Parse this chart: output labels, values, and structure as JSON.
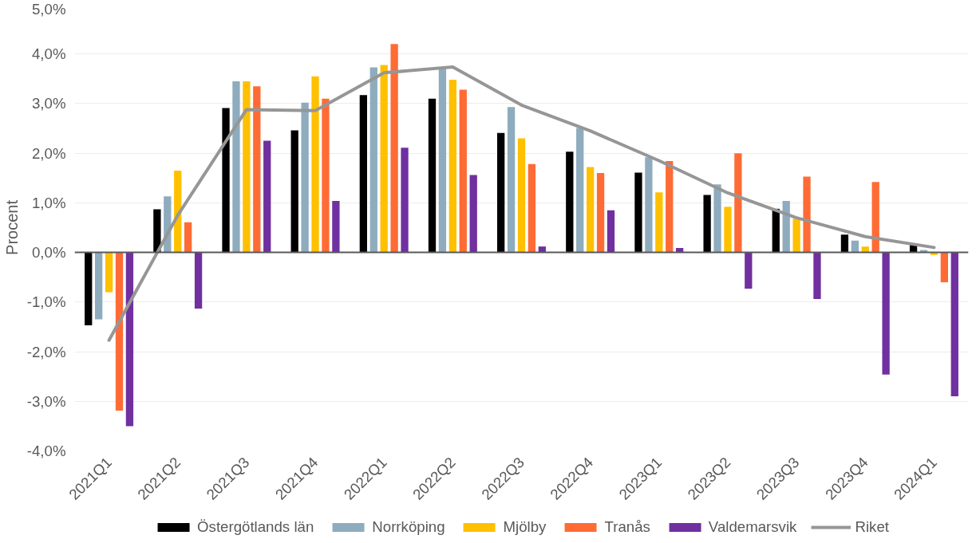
{
  "chart_data": {
    "type": "bar",
    "ylabel": "Procent",
    "categories": [
      "2021Q1",
      "2021Q2",
      "2021Q3",
      "2021Q4",
      "2022Q1",
      "2022Q2",
      "2022Q3",
      "2022Q4",
      "2023Q1",
      "2023Q2",
      "2023Q3",
      "2023Q4",
      "2024Q1"
    ],
    "series": [
      {
        "name": "Östergötlands län",
        "color": "#000000",
        "values": [
          -1.47,
          0.87,
          2.91,
          2.46,
          3.17,
          3.1,
          2.41,
          2.03,
          1.61,
          1.16,
          0.88,
          0.36,
          0.15
        ]
      },
      {
        "name": "Norrköping",
        "color": "#8eacbe",
        "values": [
          -1.35,
          1.13,
          3.45,
          3.02,
          3.73,
          3.73,
          2.93,
          2.51,
          1.92,
          1.37,
          1.04,
          0.24,
          0.05
        ]
      },
      {
        "name": "Mjölby",
        "color": "#ffc000",
        "values": [
          -0.8,
          1.65,
          3.45,
          3.55,
          3.78,
          3.48,
          2.3,
          1.72,
          1.21,
          0.92,
          0.68,
          0.12,
          -0.05
        ]
      },
      {
        "name": "Tranås",
        "color": "#ff6b35",
        "values": [
          -3.19,
          0.61,
          3.35,
          3.1,
          4.2,
          3.28,
          1.78,
          1.6,
          1.84,
          2.0,
          1.53,
          1.42,
          -0.6
        ]
      },
      {
        "name": "Valdemarsvik",
        "color": "#7030a0",
        "values": [
          -3.5,
          -1.13,
          2.25,
          1.04,
          2.11,
          1.56,
          0.12,
          0.85,
          0.09,
          -0.73,
          -0.94,
          -2.46,
          -2.9
        ]
      },
      {
        "name": "Riket",
        "type": "line",
        "color": "#969696",
        "values": [
          -1.77,
          0.75,
          2.88,
          2.86,
          3.62,
          3.74,
          2.97,
          2.45,
          1.85,
          1.2,
          0.7,
          0.32,
          0.1
        ]
      }
    ],
    "ylim": [
      -4,
      5
    ],
    "yticks": [
      {
        "value": -4,
        "label": "-4,0%"
      },
      {
        "value": -3,
        "label": "-3,0%"
      },
      {
        "value": -2,
        "label": "-2,0%"
      },
      {
        "value": -1,
        "label": "-1,0%"
      },
      {
        "value": 0,
        "label": "0,0%"
      },
      {
        "value": 1,
        "label": "1,0%"
      },
      {
        "value": 2,
        "label": "2,0%"
      },
      {
        "value": 3,
        "label": "3,0%"
      },
      {
        "value": 4,
        "label": "4,0%"
      },
      {
        "value": 5,
        "label": "5,0%"
      }
    ],
    "grid": "y",
    "legend": "bottom"
  }
}
